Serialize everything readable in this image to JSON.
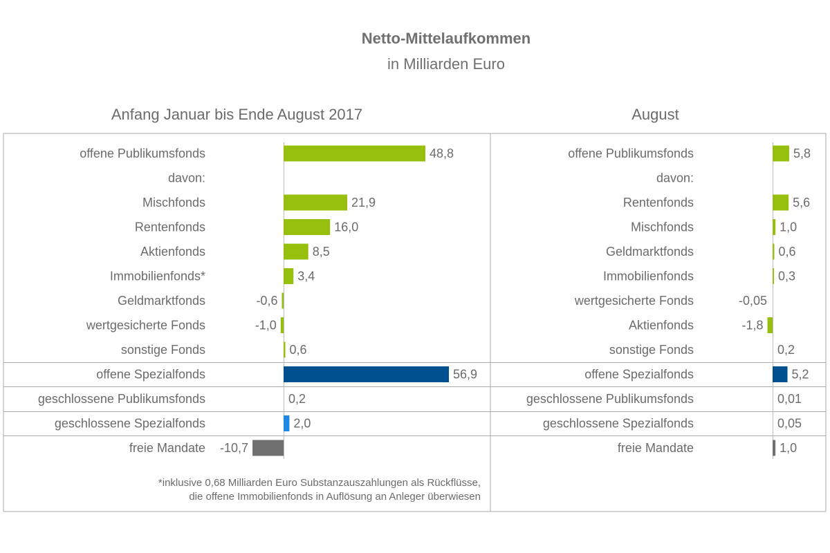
{
  "title": "Netto-Mittelaufkommen",
  "subtitle": "in Milliarden Euro",
  "footnote": [
    "*inklusive 0,68 Milliarden Euro Substanzauszahlungen als Rückflüsse,",
    "die offene Immobilienfonds in Auflösung an Anleger überwiesen"
  ],
  "colors": {
    "green": "#97bf0d",
    "dark_blue": "#004f8f",
    "light_blue": "#1e88e5",
    "gray": "#707070",
    "border": "#aaaaaa"
  },
  "chart_data": [
    {
      "type": "bar",
      "orientation": "horizontal",
      "title": "Anfang Januar bis Ende August 2017",
      "unit": "Milliarden Euro",
      "categories": [
        "offene Publikumsfonds",
        "davon:",
        "Mischfonds",
        "Rentenfonds",
        "Aktienfonds",
        "Immobilienfonds*",
        "Geldmarktfonds",
        "wertgesicherte Fonds",
        "sonstige Fonds",
        "offene Spezialfonds",
        "geschlossene Publikumsfonds",
        "geschlossene Spezialfonds",
        "freie Mandate"
      ],
      "values": [
        48.8,
        null,
        21.9,
        16.0,
        8.5,
        3.4,
        -0.6,
        -1.0,
        0.6,
        56.9,
        0.2,
        2.0,
        -10.7
      ],
      "labels": [
        "48,8",
        "",
        "21,9",
        "16,0",
        "8,5",
        "3,4",
        "-0,6",
        "-1,0",
        "0,6",
        "56,9",
        "0,2",
        "2,0",
        "-10,7"
      ],
      "colors": [
        "green",
        null,
        "green",
        "green",
        "green",
        "green",
        "green",
        "green",
        "green",
        "dark_blue",
        "light_blue",
        "light_blue",
        "gray"
      ]
    },
    {
      "type": "bar",
      "orientation": "horizontal",
      "title": "August",
      "unit": "Milliarden Euro",
      "categories": [
        "offene Publikumsfonds",
        "davon:",
        "Rentenfonds",
        "Mischfonds",
        "Geldmarktfonds",
        "Immobilienfonds",
        "wertgesicherte Fonds",
        "Aktienfonds",
        "sonstige Fonds",
        "offene Spezialfonds",
        "geschlossene Publikumsfonds",
        "geschlossene Spezialfonds",
        "freie Mandate"
      ],
      "values": [
        5.8,
        null,
        5.6,
        1.0,
        0.6,
        0.3,
        -0.05,
        -1.8,
        0.2,
        5.2,
        0.01,
        0.05,
        1.0
      ],
      "labels": [
        "5,8",
        "",
        "5,6",
        "1,0",
        "0,6",
        "0,3",
        "-0,05",
        "-1,8",
        "0,2",
        "5,2",
        "0,01",
        "0,05",
        "1,0"
      ],
      "colors": [
        "green",
        null,
        "green",
        "green",
        "green",
        "green",
        "green",
        "green",
        "green",
        "dark_blue",
        "light_blue",
        "light_blue",
        "gray"
      ]
    }
  ]
}
